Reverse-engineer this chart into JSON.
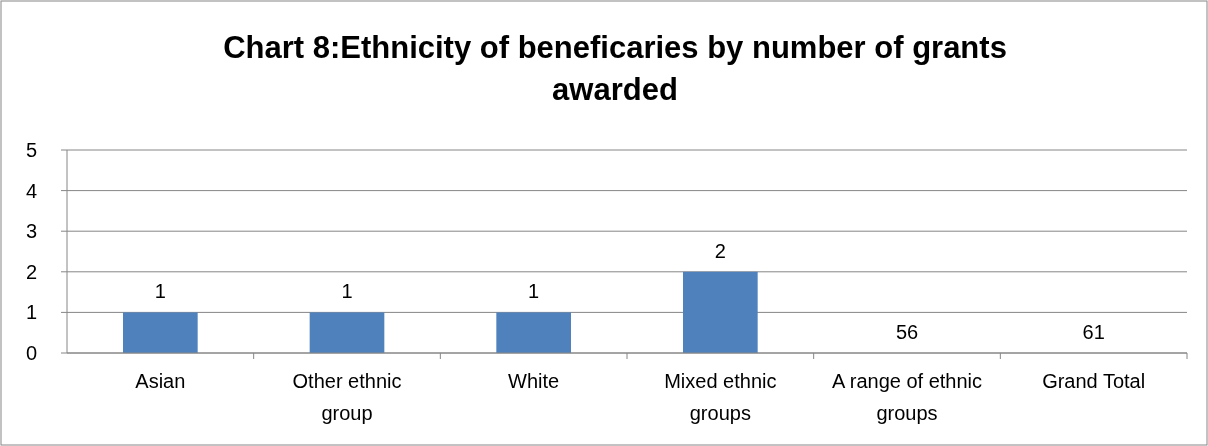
{
  "chart_data": {
    "type": "bar",
    "title": "Chart 8:Ethnicity of beneficaries by number of grants awarded",
    "categories": [
      "Asian",
      "Other ethnic group",
      "White",
      "Mixed ethnic groups",
      "A range of ethnic groups",
      "Grand Total"
    ],
    "values": [
      1,
      1,
      1,
      2,
      null,
      null
    ],
    "value_labels": [
      "1",
      "1",
      "1",
      "2",
      "56",
      "61"
    ],
    "color": "#4f81bd",
    "ylim": [
      0,
      5
    ],
    "yticks": [
      0,
      1,
      2,
      3,
      4,
      5
    ],
    "grid": "y"
  }
}
